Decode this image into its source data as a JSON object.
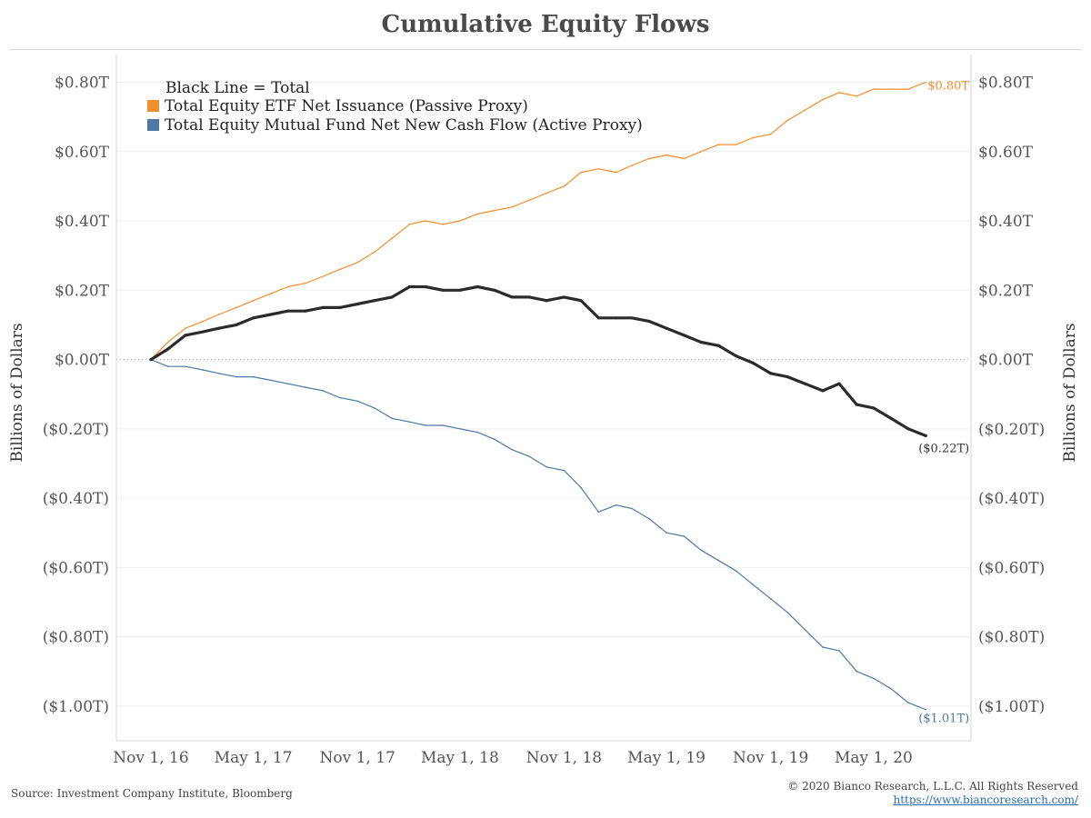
{
  "footer": {
    "source": "Source: Investment Company Institute, Bloomberg",
    "copyright": "© 2020 Bianco Research, L.L.C. All Rights Reserved",
    "url": "https://www.biancoresearch.com/"
  },
  "chart_data": {
    "type": "line",
    "title": "Cumulative Equity Flows",
    "ylabel": "Billions of Dollars",
    "ylabel_right": "Billions of Dollars",
    "units": "trillions of dollars",
    "ylim": [
      -1.1,
      0.88
    ],
    "y_ticks": [
      0.8,
      0.6,
      0.4,
      0.2,
      0.0,
      -0.2,
      -0.4,
      -0.6,
      -0.8,
      -1.0
    ],
    "y_tick_labels": [
      "$0.80T",
      "$0.60T",
      "$0.40T",
      "$0.20T",
      "$0.00T",
      "($0.20T)",
      "($0.40T)",
      "($0.60T)",
      "($0.80T)",
      "($1.00T)"
    ],
    "xlim": [
      "2016-09-01",
      "2020-10-20"
    ],
    "x_ticks": [
      "2016-11-01",
      "2017-05-01",
      "2017-11-01",
      "2018-05-01",
      "2018-11-01",
      "2019-05-01",
      "2019-11-01",
      "2020-05-01"
    ],
    "x_tick_labels": [
      "Nov 1, 16",
      "May 1, 17",
      "Nov 1, 17",
      "May 1, 18",
      "Nov 1, 18",
      "May 1, 19",
      "Nov 1, 19",
      "May 1, 20"
    ],
    "grid": true,
    "legend_position": "top-left",
    "legend_note": "Black Line = Total",
    "colors": {
      "etf": "#f28e2b",
      "mutual_fund": "#4e79a7",
      "total": "#2b2b2b"
    },
    "series": [
      {
        "name": "Total Equity ETF Net Issuance (Passive Proxy)",
        "color": "#f28e2b",
        "end_label": "$0.80T",
        "points": [
          [
            "2016-11-01",
            0.0
          ],
          [
            "2016-12-01",
            0.05
          ],
          [
            "2017-01-01",
            0.09
          ],
          [
            "2017-02-01",
            0.11
          ],
          [
            "2017-03-01",
            0.13
          ],
          [
            "2017-04-01",
            0.15
          ],
          [
            "2017-05-01",
            0.17
          ],
          [
            "2017-06-01",
            0.19
          ],
          [
            "2017-07-01",
            0.21
          ],
          [
            "2017-08-01",
            0.22
          ],
          [
            "2017-09-01",
            0.24
          ],
          [
            "2017-10-01",
            0.26
          ],
          [
            "2017-11-01",
            0.28
          ],
          [
            "2017-12-01",
            0.31
          ],
          [
            "2018-01-01",
            0.35
          ],
          [
            "2018-02-01",
            0.39
          ],
          [
            "2018-03-01",
            0.4
          ],
          [
            "2018-04-01",
            0.39
          ],
          [
            "2018-05-01",
            0.4
          ],
          [
            "2018-06-01",
            0.42
          ],
          [
            "2018-07-01",
            0.43
          ],
          [
            "2018-08-01",
            0.44
          ],
          [
            "2018-09-01",
            0.46
          ],
          [
            "2018-10-01",
            0.48
          ],
          [
            "2018-11-01",
            0.5
          ],
          [
            "2018-12-01",
            0.54
          ],
          [
            "2019-01-01",
            0.55
          ],
          [
            "2019-02-01",
            0.54
          ],
          [
            "2019-03-01",
            0.56
          ],
          [
            "2019-04-01",
            0.58
          ],
          [
            "2019-05-01",
            0.59
          ],
          [
            "2019-06-01",
            0.58
          ],
          [
            "2019-07-01",
            0.6
          ],
          [
            "2019-08-01",
            0.62
          ],
          [
            "2019-09-01",
            0.62
          ],
          [
            "2019-10-01",
            0.64
          ],
          [
            "2019-11-01",
            0.65
          ],
          [
            "2019-12-01",
            0.69
          ],
          [
            "2020-01-01",
            0.72
          ],
          [
            "2020-02-01",
            0.75
          ],
          [
            "2020-03-01",
            0.77
          ],
          [
            "2020-04-01",
            0.76
          ],
          [
            "2020-05-01",
            0.78
          ],
          [
            "2020-06-01",
            0.78
          ],
          [
            "2020-07-01",
            0.78
          ],
          [
            "2020-08-01",
            0.8
          ]
        ]
      },
      {
        "name": "Total Equity Mutual Fund Net New Cash Flow (Active Proxy)",
        "color": "#4e79a7",
        "end_label": "($1.01T)",
        "points": [
          [
            "2016-11-01",
            0.0
          ],
          [
            "2016-12-01",
            -0.02
          ],
          [
            "2017-01-01",
            -0.02
          ],
          [
            "2017-02-01",
            -0.03
          ],
          [
            "2017-03-01",
            -0.04
          ],
          [
            "2017-04-01",
            -0.05
          ],
          [
            "2017-05-01",
            -0.05
          ],
          [
            "2017-06-01",
            -0.06
          ],
          [
            "2017-07-01",
            -0.07
          ],
          [
            "2017-08-01",
            -0.08
          ],
          [
            "2017-09-01",
            -0.09
          ],
          [
            "2017-10-01",
            -0.11
          ],
          [
            "2017-11-01",
            -0.12
          ],
          [
            "2017-12-01",
            -0.14
          ],
          [
            "2018-01-01",
            -0.17
          ],
          [
            "2018-02-01",
            -0.18
          ],
          [
            "2018-03-01",
            -0.19
          ],
          [
            "2018-04-01",
            -0.19
          ],
          [
            "2018-05-01",
            -0.2
          ],
          [
            "2018-06-01",
            -0.21
          ],
          [
            "2018-07-01",
            -0.23
          ],
          [
            "2018-08-01",
            -0.26
          ],
          [
            "2018-09-01",
            -0.28
          ],
          [
            "2018-10-01",
            -0.31
          ],
          [
            "2018-11-01",
            -0.32
          ],
          [
            "2018-12-01",
            -0.37
          ],
          [
            "2019-01-01",
            -0.44
          ],
          [
            "2019-02-01",
            -0.42
          ],
          [
            "2019-03-01",
            -0.43
          ],
          [
            "2019-04-01",
            -0.46
          ],
          [
            "2019-05-01",
            -0.5
          ],
          [
            "2019-06-01",
            -0.51
          ],
          [
            "2019-07-01",
            -0.55
          ],
          [
            "2019-08-01",
            -0.58
          ],
          [
            "2019-09-01",
            -0.61
          ],
          [
            "2019-10-01",
            -0.65
          ],
          [
            "2019-11-01",
            -0.69
          ],
          [
            "2019-12-01",
            -0.73
          ],
          [
            "2020-01-01",
            -0.78
          ],
          [
            "2020-02-01",
            -0.83
          ],
          [
            "2020-03-01",
            -0.84
          ],
          [
            "2020-04-01",
            -0.9
          ],
          [
            "2020-05-01",
            -0.92
          ],
          [
            "2020-06-01",
            -0.95
          ],
          [
            "2020-07-01",
            -0.99
          ],
          [
            "2020-08-01",
            -1.01
          ]
        ]
      },
      {
        "name": "Total",
        "color": "#2b2b2b",
        "end_label": "($0.22T)",
        "points": [
          [
            "2016-11-01",
            0.0
          ],
          [
            "2016-12-01",
            0.03
          ],
          [
            "2017-01-01",
            0.07
          ],
          [
            "2017-02-01",
            0.08
          ],
          [
            "2017-03-01",
            0.09
          ],
          [
            "2017-04-01",
            0.1
          ],
          [
            "2017-05-01",
            0.12
          ],
          [
            "2017-06-01",
            0.13
          ],
          [
            "2017-07-01",
            0.14
          ],
          [
            "2017-08-01",
            0.14
          ],
          [
            "2017-09-01",
            0.15
          ],
          [
            "2017-10-01",
            0.15
          ],
          [
            "2017-11-01",
            0.16
          ],
          [
            "2017-12-01",
            0.17
          ],
          [
            "2018-01-01",
            0.18
          ],
          [
            "2018-02-01",
            0.21
          ],
          [
            "2018-03-01",
            0.21
          ],
          [
            "2018-04-01",
            0.2
          ],
          [
            "2018-05-01",
            0.2
          ],
          [
            "2018-06-01",
            0.21
          ],
          [
            "2018-07-01",
            0.2
          ],
          [
            "2018-08-01",
            0.18
          ],
          [
            "2018-09-01",
            0.18
          ],
          [
            "2018-10-01",
            0.17
          ],
          [
            "2018-11-01",
            0.18
          ],
          [
            "2018-12-01",
            0.17
          ],
          [
            "2019-01-01",
            0.12
          ],
          [
            "2019-02-01",
            0.12
          ],
          [
            "2019-03-01",
            0.12
          ],
          [
            "2019-04-01",
            0.11
          ],
          [
            "2019-05-01",
            0.09
          ],
          [
            "2019-06-01",
            0.07
          ],
          [
            "2019-07-01",
            0.05
          ],
          [
            "2019-08-01",
            0.04
          ],
          [
            "2019-09-01",
            0.01
          ],
          [
            "2019-10-01",
            -0.01
          ],
          [
            "2019-11-01",
            -0.04
          ],
          [
            "2019-12-01",
            -0.05
          ],
          [
            "2020-01-01",
            -0.07
          ],
          [
            "2020-02-01",
            -0.09
          ],
          [
            "2020-03-01",
            -0.07
          ],
          [
            "2020-04-01",
            -0.13
          ],
          [
            "2020-05-01",
            -0.14
          ],
          [
            "2020-06-01",
            -0.17
          ],
          [
            "2020-07-01",
            -0.2
          ],
          [
            "2020-08-01",
            -0.22
          ]
        ]
      }
    ]
  }
}
